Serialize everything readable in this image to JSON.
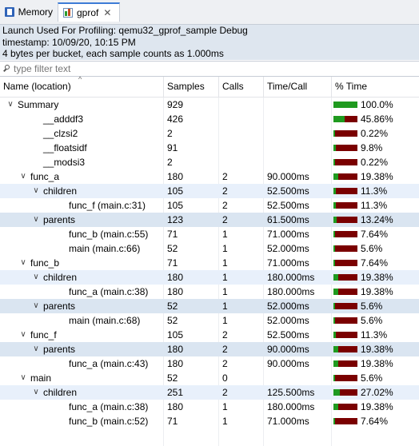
{
  "tabs": [
    {
      "label": "Memory",
      "icon": "memory-icon"
    },
    {
      "label": "gprof",
      "icon": "gprof-icon",
      "active": true
    }
  ],
  "info": {
    "line1": "Launch Used For Profiling: qemu32_gprof_sample Debug",
    "line2": "timestamp: 10/09/20, 10:15 PM",
    "line3": "4 bytes per bucket, each sample counts as 1.000ms"
  },
  "filter": {
    "placeholder": "type filter text",
    "value": ""
  },
  "columns": {
    "name": "Name (location)",
    "samples": "Samples",
    "calls": "Calls",
    "time_call": "Time/Call",
    "pct_time": "% Time"
  },
  "colors": {
    "bar_time": "#1f9a1f",
    "bar_rest": "#7a0000",
    "selection": "#dae5f1"
  },
  "rows": [
    {
      "level": 0,
      "toggle": "open",
      "name": "Summary",
      "samples": "929",
      "calls": "",
      "time_call": "",
      "pct": "100.0%",
      "pct_value": 100.0
    },
    {
      "level": 1,
      "toggle": "",
      "name": "__adddf3",
      "samples": "426",
      "calls": "",
      "time_call": "",
      "pct": "45.86%",
      "pct_value": 45.86
    },
    {
      "level": 1,
      "toggle": "",
      "name": "__clzsi2",
      "samples": "2",
      "calls": "",
      "time_call": "",
      "pct": "0.22%",
      "pct_value": 0.22
    },
    {
      "level": 1,
      "toggle": "",
      "name": "__floatsidf",
      "samples": "91",
      "calls": "",
      "time_call": "",
      "pct": "9.8%",
      "pct_value": 9.8
    },
    {
      "level": 1,
      "toggle": "",
      "name": "__modsi3",
      "samples": "2",
      "calls": "",
      "time_call": "",
      "pct": "0.22%",
      "pct_value": 0.22
    },
    {
      "level": 1,
      "toggle": "open",
      "name": "func_a",
      "samples": "180",
      "calls": "2",
      "time_call": "90.000ms",
      "pct": "19.38%",
      "pct_value": 19.38
    },
    {
      "level": 2,
      "toggle": "open",
      "name": "children",
      "samples": "105",
      "calls": "2",
      "time_call": "52.500ms",
      "pct": "11.3%",
      "pct_value": 11.3,
      "style": "alt"
    },
    {
      "level": 3,
      "toggle": "",
      "name": "func_f (main.c:31)",
      "samples": "105",
      "calls": "2",
      "time_call": "52.500ms",
      "pct": "11.3%",
      "pct_value": 11.3
    },
    {
      "level": 2,
      "toggle": "open",
      "name": "parents",
      "samples": "123",
      "calls": "2",
      "time_call": "61.500ms",
      "pct": "13.24%",
      "pct_value": 13.24,
      "style": "sel"
    },
    {
      "level": 3,
      "toggle": "",
      "name": "func_b (main.c:55)",
      "samples": "71",
      "calls": "1",
      "time_call": "71.000ms",
      "pct": "7.64%",
      "pct_value": 7.64
    },
    {
      "level": 3,
      "toggle": "",
      "name": "main (main.c:66)",
      "samples": "52",
      "calls": "1",
      "time_call": "52.000ms",
      "pct": "5.6%",
      "pct_value": 5.6
    },
    {
      "level": 1,
      "toggle": "open",
      "name": "func_b",
      "samples": "71",
      "calls": "1",
      "time_call": "71.000ms",
      "pct": "7.64%",
      "pct_value": 7.64
    },
    {
      "level": 2,
      "toggle": "open",
      "name": "children",
      "samples": "180",
      "calls": "1",
      "time_call": "180.000ms",
      "pct": "19.38%",
      "pct_value": 19.38,
      "style": "alt"
    },
    {
      "level": 3,
      "toggle": "",
      "name": "func_a (main.c:38)",
      "samples": "180",
      "calls": "1",
      "time_call": "180.000ms",
      "pct": "19.38%",
      "pct_value": 19.38
    },
    {
      "level": 2,
      "toggle": "open",
      "name": "parents",
      "samples": "52",
      "calls": "1",
      "time_call": "52.000ms",
      "pct": "5.6%",
      "pct_value": 5.6,
      "style": "sel"
    },
    {
      "level": 3,
      "toggle": "",
      "name": "main (main.c:68)",
      "samples": "52",
      "calls": "1",
      "time_call": "52.000ms",
      "pct": "5.6%",
      "pct_value": 5.6
    },
    {
      "level": 1,
      "toggle": "open",
      "name": "func_f",
      "samples": "105",
      "calls": "2",
      "time_call": "52.500ms",
      "pct": "11.3%",
      "pct_value": 11.3
    },
    {
      "level": 2,
      "toggle": "open",
      "name": "parents",
      "samples": "180",
      "calls": "2",
      "time_call": "90.000ms",
      "pct": "19.38%",
      "pct_value": 19.38,
      "style": "sel"
    },
    {
      "level": 3,
      "toggle": "",
      "name": "func_a (main.c:43)",
      "samples": "180",
      "calls": "2",
      "time_call": "90.000ms",
      "pct": "19.38%",
      "pct_value": 19.38
    },
    {
      "level": 1,
      "toggle": "open",
      "name": "main",
      "samples": "52",
      "calls": "0",
      "time_call": "",
      "pct": "5.6%",
      "pct_value": 5.6
    },
    {
      "level": 2,
      "toggle": "open",
      "name": "children",
      "samples": "251",
      "calls": "2",
      "time_call": "125.500ms",
      "pct": "27.02%",
      "pct_value": 27.02,
      "style": "alt"
    },
    {
      "level": 3,
      "toggle": "",
      "name": "func_a (main.c:38)",
      "samples": "180",
      "calls": "1",
      "time_call": "180.000ms",
      "pct": "19.38%",
      "pct_value": 19.38
    },
    {
      "level": 3,
      "toggle": "",
      "name": "func_b (main.c:52)",
      "samples": "71",
      "calls": "1",
      "time_call": "71.000ms",
      "pct": "7.64%",
      "pct_value": 7.64
    }
  ]
}
